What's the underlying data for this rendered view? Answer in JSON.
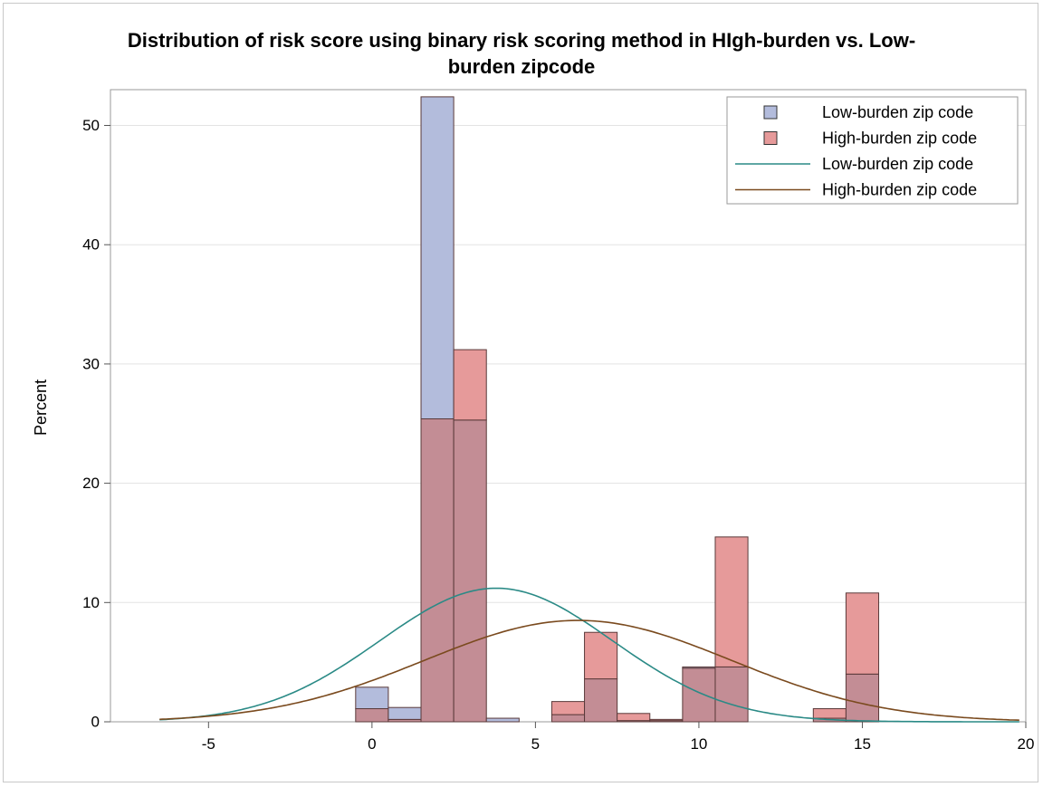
{
  "chart_data": {
    "type": "histogram",
    "title_line1": "Distribution of risk score using binary risk scoring method in HIgh-burden vs. Low-",
    "title_line2": "burden zipcode",
    "ylabel": "Percent",
    "xlabel": "",
    "xlim": [
      -8,
      20
    ],
    "ylim": [
      0,
      53
    ],
    "x_ticks": [
      -5,
      0,
      5,
      10,
      15,
      20
    ],
    "y_ticks": [
      0,
      10,
      20,
      30,
      40,
      50
    ],
    "bin_width": 1,
    "grid": "horizontal",
    "legend_position": "top-right",
    "colors": {
      "low_fill": "#b3bcdc",
      "high_fill": "#e69a9a",
      "overlap_fill": "#c38d95",
      "bar_stroke": "#5a3a3a",
      "low_curve": "#2a8a86",
      "high_curve": "#7a4a1e",
      "grid": "#e3e3e3"
    },
    "series": [
      {
        "name": "Low-burden zip code",
        "kind": "histogram",
        "bin_centers": [
          0,
          1,
          2,
          3,
          4,
          6,
          7,
          8,
          9,
          10,
          11,
          14,
          15
        ],
        "values": [
          2.9,
          1.2,
          52.4,
          25.3,
          0.3,
          0.6,
          3.6,
          0.1,
          0.1,
          4.6,
          4.6,
          0.3,
          4.0
        ]
      },
      {
        "name": "High-burden zip code",
        "kind": "histogram",
        "bin_centers": [
          0,
          1,
          2,
          3,
          6,
          7,
          8,
          9,
          10,
          11,
          14,
          15
        ],
        "values": [
          1.1,
          0.2,
          25.4,
          31.2,
          1.7,
          7.5,
          0.7,
          0.2,
          4.5,
          15.5,
          1.1,
          10.8
        ]
      },
      {
        "name": "Low-burden zip code",
        "kind": "normal_curve",
        "mean": 3.8,
        "peak": 11.2
      },
      {
        "name": "High-burden zip code",
        "kind": "normal_curve",
        "mean": 6.3,
        "peak": 8.5
      }
    ]
  }
}
